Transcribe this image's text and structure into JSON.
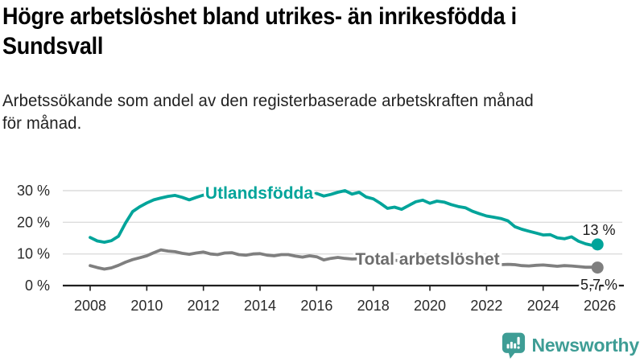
{
  "header": {
    "title_line1": "Högre arbetslöshet bland utrikes- än inrikesfödda i",
    "title_line2": "Sundsvall",
    "subtitle_line1": "Arbetssökande som andel av den registerbaserade arbetskraften månad",
    "subtitle_line2": "för månad."
  },
  "logo": {
    "text": "Newsworthy",
    "icon": "bar-chart-speech-bubble",
    "color": "#3E9D95"
  },
  "colors": {
    "accent_teal": "#00A49A",
    "line_gray": "#7F7F7F",
    "label_gray": "#6E6E6E",
    "gridline": "#DCDCDC",
    "axis": "#1F1F1F",
    "tick_text": "#2A2A2A",
    "annotation_text": "#1A1A1A"
  },
  "chart_data": {
    "type": "line",
    "title": "Högre arbetslöshet bland utrikes- än inrikesfödda i Sundsvall",
    "subtitle": "Arbetssökande som andel av den registerbaserade arbetskraften månad för månad.",
    "xlabel": "",
    "ylabel": "",
    "grid": true,
    "legend_position": "inline-labels",
    "x_start": 2008,
    "x_step": 0.25,
    "xlim": [
      2007.9,
      2026.85
    ],
    "ylim": [
      0,
      33
    ],
    "xticks": [
      2008,
      2010,
      2012,
      2014,
      2016,
      2018,
      2020,
      2022,
      2024,
      2026
    ],
    "yticks": [
      0,
      10,
      20,
      30
    ],
    "ytick_suffix": " %",
    "series": [
      {
        "name": "Utlandsfödda",
        "color": "#00A49A",
        "label_color": "#00A49A",
        "values": [
          15.2,
          14.1,
          13.7,
          14.2,
          15.6,
          19.8,
          23.4,
          24.9,
          26.1,
          27.1,
          27.7,
          28.2,
          28.5,
          27.9,
          27.1,
          27.9,
          28.6,
          28.0,
          28.7,
          29.4,
          29.6,
          28.9,
          28.4,
          28.9,
          28.7,
          28.1,
          27.8,
          28.3,
          28.1,
          27.6,
          27.9,
          28.6,
          29.1,
          28.3,
          28.8,
          29.5,
          30.0,
          28.9,
          29.5,
          28.0,
          27.4,
          26.0,
          24.4,
          24.8,
          24.1,
          25.3,
          26.5,
          27.0,
          26.0,
          26.7,
          26.4,
          25.6,
          25.0,
          24.6,
          23.5,
          22.7,
          22.0,
          21.6,
          21.2,
          20.5,
          18.6,
          17.8,
          17.2,
          16.6,
          16.0,
          16.1,
          15.1,
          14.8,
          15.4,
          14.0,
          13.2,
          12.7
        ],
        "end": {
          "x": 2025.92,
          "value": 13.0,
          "label": "13 %"
        }
      },
      {
        "name": "Total arbetslöshet",
        "color": "#7F7F7F",
        "label_color": "#6E6E6E",
        "values": [
          6.3,
          5.7,
          5.2,
          5.6,
          6.4,
          7.4,
          8.2,
          8.8,
          9.4,
          10.4,
          11.3,
          10.9,
          10.7,
          10.2,
          9.9,
          10.3,
          10.6,
          10.0,
          9.8,
          10.3,
          10.4,
          9.8,
          9.6,
          10.0,
          10.1,
          9.6,
          9.4,
          9.8,
          9.8,
          9.3,
          9.0,
          9.4,
          9.1,
          8.1,
          8.6,
          8.9,
          8.6,
          8.4,
          8.5,
          8.3,
          8.1,
          7.8,
          7.7,
          8.0,
          7.8,
          7.5,
          7.4,
          7.8,
          8.3,
          9.1,
          9.3,
          9.0,
          8.7,
          8.3,
          7.9,
          7.6,
          7.2,
          6.8,
          6.6,
          6.7,
          6.6,
          6.3,
          6.2,
          6.4,
          6.5,
          6.3,
          6.1,
          6.3,
          6.2,
          6.0,
          5.8,
          5.8
        ],
        "end": {
          "x": 2025.92,
          "value": 5.7,
          "label": "5,7 %"
        }
      }
    ]
  }
}
